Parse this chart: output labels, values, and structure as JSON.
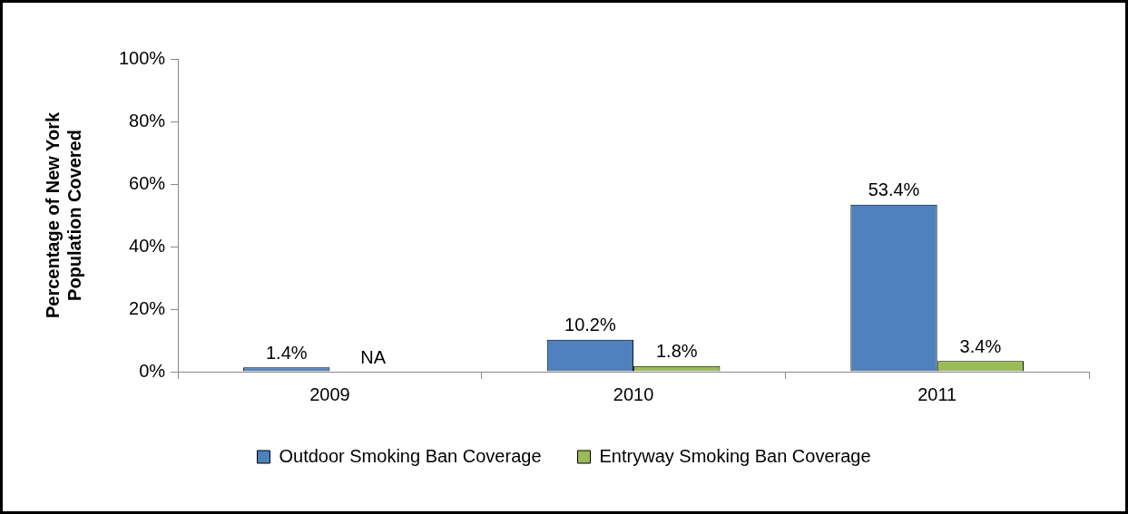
{
  "chart_data": {
    "type": "bar",
    "ylabel": "Percentage of New York\nPopulation Covered",
    "categories": [
      "2009",
      "2010",
      "2011"
    ],
    "series": [
      {
        "name": "Outdoor Smoking Ban Coverage",
        "color": "#4f81bd",
        "values": [
          1.4,
          10.2,
          53.4
        ],
        "value_labels": [
          "1.4%",
          "10.2%",
          "53.4%"
        ]
      },
      {
        "name": "Entryway Smoking Ban Coverage",
        "color": "#9bbb59",
        "values": [
          null,
          1.8,
          3.4
        ],
        "value_labels": [
          "NA",
          "1.8%",
          "3.4%"
        ]
      }
    ],
    "ylim": [
      0,
      100
    ],
    "yticks": [
      {
        "value": 0,
        "label": "0%"
      },
      {
        "value": 20,
        "label": "20%"
      },
      {
        "value": 40,
        "label": "40%"
      },
      {
        "value": 60,
        "label": "60%"
      },
      {
        "value": 80,
        "label": "80%"
      },
      {
        "value": 100,
        "label": "100%"
      }
    ],
    "grid": false,
    "legend": "bottom"
  }
}
